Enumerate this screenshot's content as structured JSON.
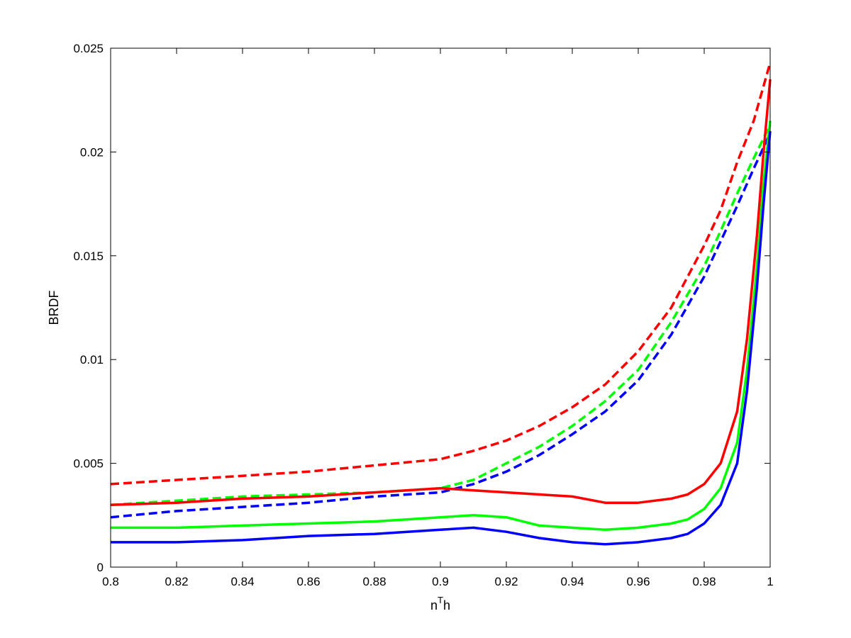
{
  "chart_data": {
    "type": "line",
    "title": "",
    "xlabel_base": "n",
    "xlabel_sup": "T",
    "xlabel_tail": "h",
    "ylabel": "BRDF",
    "xlim": [
      0.8,
      1.0
    ],
    "ylim": [
      0,
      0.025
    ],
    "grid": false,
    "legend": "none",
    "xticks": [
      0.8,
      0.82,
      0.84,
      0.86,
      0.88,
      0.9,
      0.92,
      0.94,
      0.96,
      0.98,
      1.0
    ],
    "xtick_labels": [
      "0.8",
      "0.82",
      "0.84",
      "0.86",
      "0.88",
      "0.9",
      "0.92",
      "0.94",
      "0.96",
      "0.98",
      "1"
    ],
    "yticks": [
      0,
      0.005,
      0.01,
      0.015,
      0.02,
      0.025
    ],
    "ytick_labels": [
      "0",
      "0.005",
      "0.01",
      "0.015",
      "0.02",
      "0.025"
    ],
    "series": [
      {
        "color": "#ff0000",
        "style": "dashed",
        "x": [
          0.8,
          0.82,
          0.84,
          0.86,
          0.88,
          0.9,
          0.91,
          0.92,
          0.93,
          0.94,
          0.95,
          0.96,
          0.97,
          0.98,
          0.985,
          0.99,
          0.995,
          1.0
        ],
        "y": [
          0.004,
          0.0042,
          0.0044,
          0.0046,
          0.0049,
          0.0052,
          0.0056,
          0.0061,
          0.0068,
          0.0077,
          0.0088,
          0.0104,
          0.0125,
          0.0155,
          0.0172,
          0.0195,
          0.0215,
          0.0243
        ]
      },
      {
        "color": "#00ff00",
        "style": "dashed",
        "x": [
          0.8,
          0.82,
          0.84,
          0.86,
          0.88,
          0.9,
          0.91,
          0.92,
          0.93,
          0.94,
          0.95,
          0.96,
          0.97,
          0.98,
          0.985,
          0.99,
          0.995,
          1.0
        ],
        "y": [
          0.003,
          0.0032,
          0.0034,
          0.0035,
          0.0036,
          0.0038,
          0.0042,
          0.005,
          0.0058,
          0.0068,
          0.008,
          0.0095,
          0.0118,
          0.0145,
          0.0162,
          0.018,
          0.0197,
          0.0213
        ]
      },
      {
        "color": "#0000ff",
        "style": "dashed",
        "x": [
          0.8,
          0.82,
          0.84,
          0.86,
          0.88,
          0.9,
          0.91,
          0.92,
          0.93,
          0.94,
          0.95,
          0.96,
          0.97,
          0.98,
          0.985,
          0.99,
          0.995,
          1.0
        ],
        "y": [
          0.0024,
          0.0027,
          0.0029,
          0.0031,
          0.0034,
          0.0036,
          0.004,
          0.0046,
          0.0054,
          0.0064,
          0.0075,
          0.009,
          0.0112,
          0.014,
          0.0157,
          0.0174,
          0.0192,
          0.0209
        ]
      },
      {
        "color": "#ff0000",
        "style": "solid",
        "x": [
          0.8,
          0.82,
          0.84,
          0.86,
          0.88,
          0.9,
          0.91,
          0.92,
          0.93,
          0.94,
          0.95,
          0.96,
          0.97,
          0.975,
          0.98,
          0.985,
          0.99,
          0.993,
          0.996,
          0.998,
          1.0
        ],
        "y": [
          0.003,
          0.0031,
          0.0033,
          0.0034,
          0.0036,
          0.0038,
          0.0037,
          0.0036,
          0.0035,
          0.0034,
          0.0031,
          0.0031,
          0.0033,
          0.0035,
          0.004,
          0.005,
          0.0075,
          0.011,
          0.016,
          0.02,
          0.0235
        ]
      },
      {
        "color": "#00ff00",
        "style": "solid",
        "x": [
          0.8,
          0.82,
          0.84,
          0.86,
          0.88,
          0.9,
          0.91,
          0.92,
          0.93,
          0.94,
          0.95,
          0.96,
          0.97,
          0.975,
          0.98,
          0.985,
          0.99,
          0.993,
          0.996,
          0.998,
          1.0
        ],
        "y": [
          0.0019,
          0.0019,
          0.002,
          0.0021,
          0.0022,
          0.0024,
          0.0025,
          0.0024,
          0.002,
          0.0019,
          0.0018,
          0.0019,
          0.0021,
          0.0023,
          0.0028,
          0.0038,
          0.006,
          0.0095,
          0.0145,
          0.0185,
          0.0215
        ]
      },
      {
        "color": "#0000ff",
        "style": "solid",
        "x": [
          0.8,
          0.82,
          0.84,
          0.86,
          0.88,
          0.9,
          0.91,
          0.92,
          0.93,
          0.94,
          0.95,
          0.96,
          0.97,
          0.975,
          0.98,
          0.985,
          0.99,
          0.993,
          0.996,
          0.998,
          1.0
        ],
        "y": [
          0.0012,
          0.0012,
          0.0013,
          0.0015,
          0.0016,
          0.0018,
          0.0019,
          0.0017,
          0.0014,
          0.0012,
          0.0011,
          0.0012,
          0.0014,
          0.0016,
          0.0021,
          0.003,
          0.005,
          0.0085,
          0.0135,
          0.0175,
          0.021
        ]
      }
    ]
  }
}
